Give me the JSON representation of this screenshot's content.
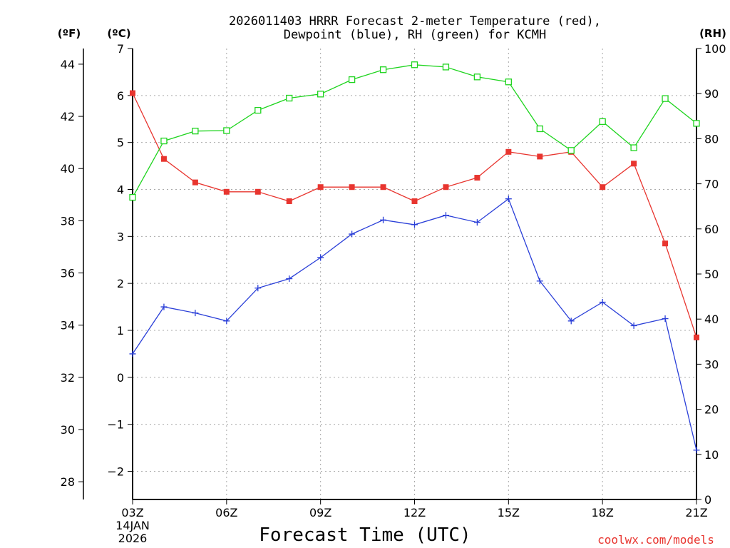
{
  "chart_data": {
    "type": "line",
    "title": "2026011403 HRRR Forecast 2-meter Temperature (red),",
    "title2": "Dewpoint (blue), RH (green) for KCMH",
    "xlabel": "Forecast Time (UTC)",
    "credit": "coolwx.com/models",
    "date_lines": [
      "14JAN",
      "2026"
    ],
    "units": {
      "f": "(ºF)",
      "c": "(ºC)",
      "rh": "(RH)"
    },
    "x": [
      "03Z",
      "04Z",
      "05Z",
      "06Z",
      "07Z",
      "08Z",
      "09Z",
      "10Z",
      "11Z",
      "12Z",
      "13Z",
      "14Z",
      "15Z",
      "16Z",
      "17Z",
      "18Z",
      "19Z",
      "20Z",
      "21Z"
    ],
    "x_tick_labels": [
      {
        "index": 0,
        "label": "03Z"
      },
      {
        "index": 3,
        "label": "06Z"
      },
      {
        "index": 6,
        "label": "09Z"
      },
      {
        "index": 9,
        "label": "12Z"
      },
      {
        "index": 12,
        "label": "15Z"
      },
      {
        "index": 15,
        "label": "18Z"
      },
      {
        "index": 18,
        "label": "21Z"
      }
    ],
    "y_left_c": {
      "range": [
        -2.6,
        7
      ],
      "ticks": [
        "-2",
        "-1",
        "0",
        "1",
        "2",
        "3",
        "4",
        "5",
        "6",
        "7"
      ]
    },
    "y_left_f": {
      "ticks": [
        "28",
        "30",
        "32",
        "34",
        "36",
        "38",
        "40",
        "42",
        "44"
      ]
    },
    "y_right_rh": {
      "range": [
        0,
        100
      ],
      "ticks": [
        "0",
        "10",
        "20",
        "30",
        "40",
        "50",
        "60",
        "70",
        "80",
        "90",
        "100"
      ]
    },
    "series": [
      {
        "name": "Temperature",
        "color": "#e8352f",
        "axis": "c",
        "marker": "filled-square",
        "values": [
          6.05,
          4.65,
          4.15,
          3.95,
          3.95,
          3.75,
          4.05,
          4.05,
          4.05,
          3.75,
          4.05,
          4.25,
          4.8,
          4.7,
          4.8,
          4.05,
          4.55,
          2.85,
          0.85
        ]
      },
      {
        "name": "Dewpoint",
        "color": "#2a3fd8",
        "axis": "c",
        "marker": "plus",
        "values": [
          0.5,
          1.5,
          1.37,
          1.2,
          1.9,
          2.1,
          2.55,
          3.05,
          3.35,
          3.25,
          3.45,
          3.3,
          3.8,
          2.05,
          1.2,
          1.6,
          1.1,
          1.25,
          -1.55
        ]
      },
      {
        "name": "RH",
        "color": "#1ed41e",
        "axis": "rh",
        "marker": "open-square",
        "values": [
          67,
          79.5,
          81.7,
          81.8,
          86.3,
          89,
          89.9,
          93.1,
          95.3,
          96.4,
          95.9,
          93.7,
          92.6,
          82.2,
          77.4,
          83.8,
          78,
          88.9,
          83.4
        ]
      }
    ]
  }
}
